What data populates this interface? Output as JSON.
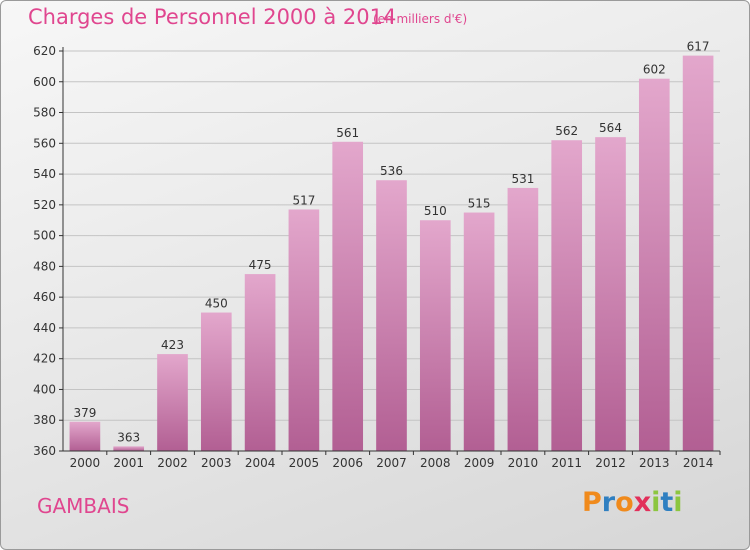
{
  "header": {
    "title": "Charges de Personnel 2000 à 2014",
    "subtitle": "(en milliers d'€)"
  },
  "footer": {
    "place": "GAMBAIS",
    "brand": {
      "letters": [
        "P",
        "r",
        "o",
        "x",
        "i",
        "t",
        "i"
      ],
      "colors": [
        "#f08a1c",
        "#2f7fc1",
        "#f08a1c",
        "#e22f5a",
        "#8cc63f",
        "#2f7fc1",
        "#8cc63f"
      ]
    }
  },
  "colors": {
    "bar_top": "#e3a7cc",
    "bar_bottom": "#b25f93",
    "accent": "#e0468f"
  },
  "chart_data": {
    "type": "bar",
    "categories": [
      "2000",
      "2001",
      "2002",
      "2003",
      "2004",
      "2005",
      "2006",
      "2007",
      "2008",
      "2009",
      "2010",
      "2011",
      "2012",
      "2013",
      "2014"
    ],
    "values": [
      379,
      363,
      423,
      450,
      475,
      517,
      561,
      536,
      510,
      515,
      531,
      562,
      564,
      602,
      617
    ],
    "title": "Charges de Personnel 2000 à 2014",
    "subtitle": "(en milliers d'€)",
    "ylim": [
      360,
      620
    ],
    "yticks": [
      360,
      380,
      400,
      420,
      440,
      460,
      480,
      500,
      520,
      540,
      560,
      580,
      600,
      620
    ],
    "grid": true
  }
}
